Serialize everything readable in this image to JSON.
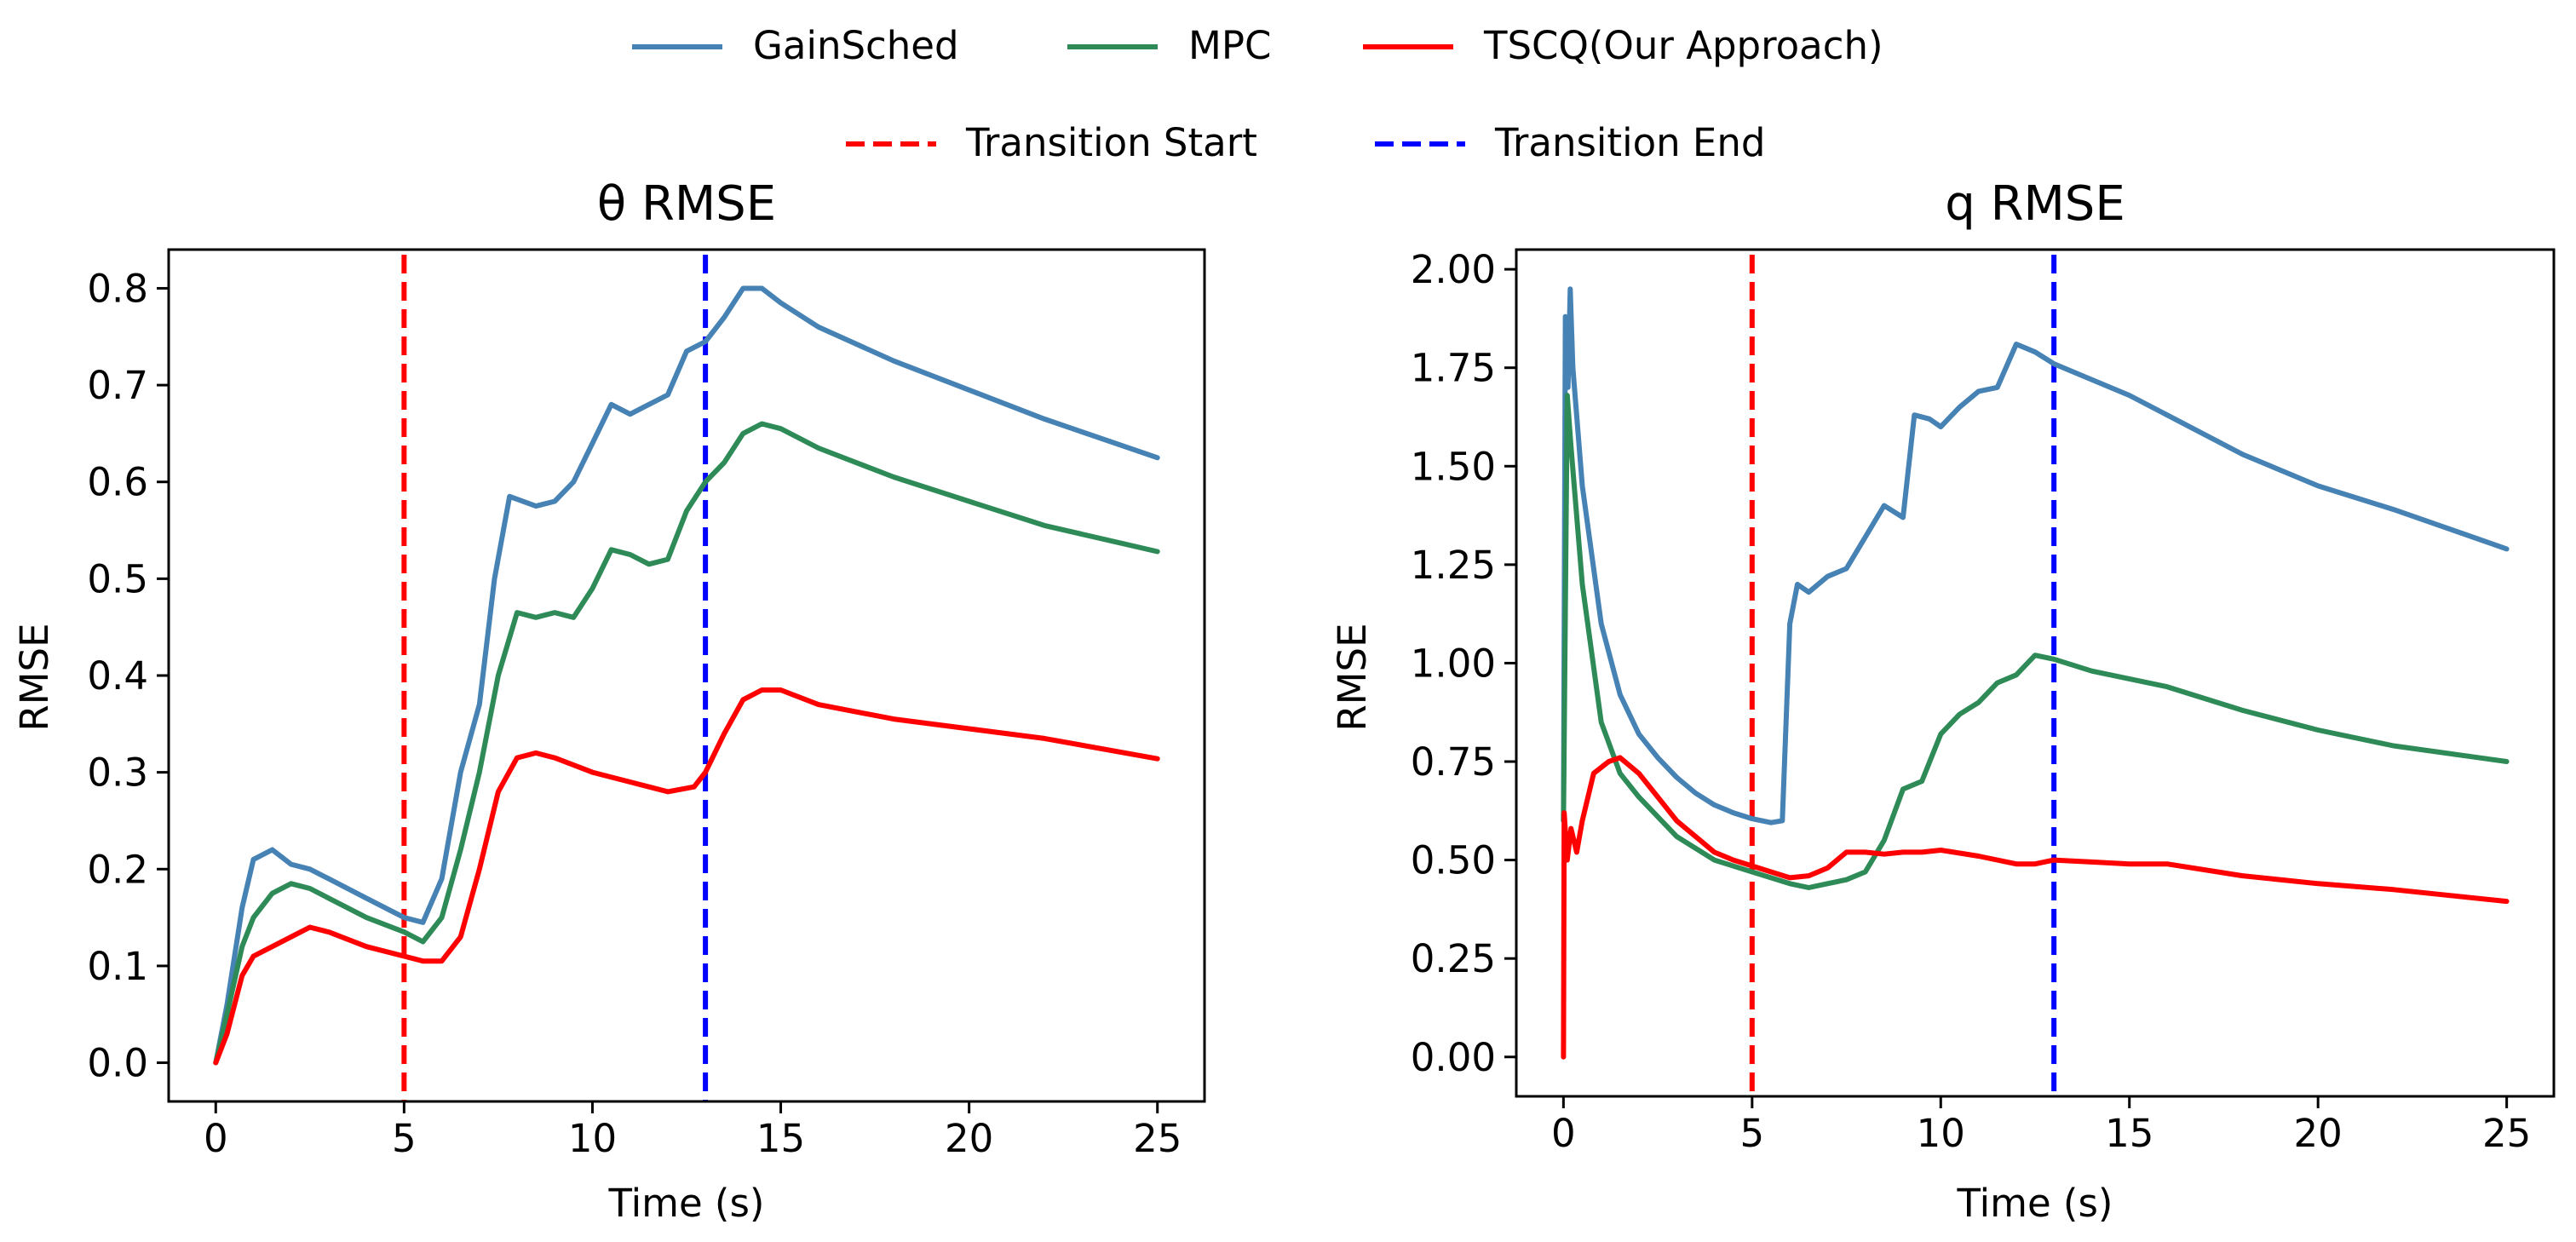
{
  "legend": {
    "row1": [
      {
        "label": "GainSched",
        "color": "#4682B4",
        "dash": "solid"
      },
      {
        "label": "MPC",
        "color": "#2E8B57",
        "dash": "solid"
      },
      {
        "label": "TSCQ(Our Approach)",
        "color": "#FF0000",
        "dash": "solid"
      }
    ],
    "row2": [
      {
        "label": "Transition Start",
        "color": "#FF0000",
        "dash": "dashed"
      },
      {
        "label": "Transition End",
        "color": "#0000FF",
        "dash": "dashed"
      }
    ]
  },
  "chart_data": [
    {
      "type": "line",
      "title": "θ RMSE",
      "xlabel": "Time (s)",
      "ylabel": "RMSE",
      "xlim": [
        -1.25,
        26.25
      ],
      "ylim": [
        -0.04,
        0.84
      ],
      "xticks": [
        0,
        5,
        10,
        15,
        20,
        25
      ],
      "yticks": [
        0.0,
        0.1,
        0.2,
        0.3,
        0.4,
        0.5,
        0.6,
        0.7,
        0.8
      ],
      "ytick_labels": [
        "0.0",
        "0.1",
        "0.2",
        "0.3",
        "0.4",
        "0.5",
        "0.6",
        "0.7",
        "0.8"
      ],
      "grid": false,
      "vlines": [
        {
          "x": 5,
          "label": "Transition Start",
          "color": "#FF0000"
        },
        {
          "x": 13,
          "label": "Transition End",
          "color": "#0000FF"
        }
      ],
      "series": [
        {
          "name": "GainSched",
          "color": "#4682B4",
          "points": [
            [
              0,
              0
            ],
            [
              0.3,
              0.06
            ],
            [
              0.7,
              0.16
            ],
            [
              1,
              0.21
            ],
            [
              1.5,
              0.22
            ],
            [
              2,
              0.205
            ],
            [
              2.5,
              0.2
            ],
            [
              3,
              0.19
            ],
            [
              4,
              0.17
            ],
            [
              5,
              0.15
            ],
            [
              5.5,
              0.145
            ],
            [
              6,
              0.19
            ],
            [
              6.5,
              0.3
            ],
            [
              7,
              0.37
            ],
            [
              7.4,
              0.5
            ],
            [
              7.8,
              0.585
            ],
            [
              8.5,
              0.575
            ],
            [
              9,
              0.58
            ],
            [
              9.5,
              0.6
            ],
            [
              10,
              0.64
            ],
            [
              10.5,
              0.68
            ],
            [
              11,
              0.67
            ],
            [
              11.5,
              0.68
            ],
            [
              12,
              0.69
            ],
            [
              12.5,
              0.735
            ],
            [
              13,
              0.745
            ],
            [
              13.5,
              0.77
            ],
            [
              14,
              0.8
            ],
            [
              14.5,
              0.8
            ],
            [
              15,
              0.785
            ],
            [
              16,
              0.76
            ],
            [
              18,
              0.725
            ],
            [
              20,
              0.695
            ],
            [
              22,
              0.665
            ],
            [
              25,
              0.625
            ]
          ]
        },
        {
          "name": "MPC",
          "color": "#2E8B57",
          "points": [
            [
              0,
              0
            ],
            [
              0.3,
              0.05
            ],
            [
              0.7,
              0.12
            ],
            [
              1,
              0.15
            ],
            [
              1.5,
              0.175
            ],
            [
              2,
              0.185
            ],
            [
              2.5,
              0.18
            ],
            [
              3,
              0.17
            ],
            [
              4,
              0.15
            ],
            [
              5,
              0.135
            ],
            [
              5.5,
              0.125
            ],
            [
              6,
              0.15
            ],
            [
              6.5,
              0.22
            ],
            [
              7,
              0.3
            ],
            [
              7.5,
              0.4
            ],
            [
              8,
              0.465
            ],
            [
              8.5,
              0.46
            ],
            [
              9,
              0.465
            ],
            [
              9.5,
              0.46
            ],
            [
              10,
              0.49
            ],
            [
              10.5,
              0.53
            ],
            [
              11,
              0.525
            ],
            [
              11.5,
              0.515
            ],
            [
              12,
              0.52
            ],
            [
              12.5,
              0.57
            ],
            [
              13,
              0.6
            ],
            [
              13.5,
              0.62
            ],
            [
              14,
              0.65
            ],
            [
              14.5,
              0.66
            ],
            [
              15,
              0.655
            ],
            [
              16,
              0.635
            ],
            [
              18,
              0.605
            ],
            [
              20,
              0.58
            ],
            [
              22,
              0.555
            ],
            [
              25,
              0.528
            ]
          ]
        },
        {
          "name": "TSCQ(Our Approach)",
          "color": "#FF0000",
          "points": [
            [
              0,
              0
            ],
            [
              0.3,
              0.03
            ],
            [
              0.7,
              0.09
            ],
            [
              1,
              0.11
            ],
            [
              1.5,
              0.12
            ],
            [
              2,
              0.13
            ],
            [
              2.5,
              0.14
            ],
            [
              3,
              0.135
            ],
            [
              4,
              0.12
            ],
            [
              5,
              0.11
            ],
            [
              5.5,
              0.105
            ],
            [
              6,
              0.105
            ],
            [
              6.5,
              0.13
            ],
            [
              7,
              0.2
            ],
            [
              7.5,
              0.28
            ],
            [
              8,
              0.315
            ],
            [
              8.5,
              0.32
            ],
            [
              9,
              0.315
            ],
            [
              10,
              0.3
            ],
            [
              11,
              0.29
            ],
            [
              12,
              0.28
            ],
            [
              12.7,
              0.285
            ],
            [
              13,
              0.3
            ],
            [
              13.5,
              0.34
            ],
            [
              14,
              0.375
            ],
            [
              14.5,
              0.385
            ],
            [
              15,
              0.385
            ],
            [
              16,
              0.37
            ],
            [
              18,
              0.355
            ],
            [
              20,
              0.345
            ],
            [
              22,
              0.335
            ],
            [
              25,
              0.314
            ]
          ]
        }
      ]
    },
    {
      "type": "line",
      "title": "q RMSE",
      "xlabel": "Time (s)",
      "ylabel": "RMSE",
      "xlim": [
        -1.25,
        26.25
      ],
      "ylim": [
        -0.1,
        2.05
      ],
      "xticks": [
        0,
        5,
        10,
        15,
        20,
        25
      ],
      "yticks": [
        0.0,
        0.25,
        0.5,
        0.75,
        1.0,
        1.25,
        1.5,
        1.75,
        2.0
      ],
      "ytick_labels": [
        "0.00",
        "0.25",
        "0.50",
        "0.75",
        "1.00",
        "1.25",
        "1.50",
        "1.75",
        "2.00"
      ],
      "grid": false,
      "vlines": [
        {
          "x": 5,
          "label": "Transition Start",
          "color": "#FF0000"
        },
        {
          "x": 13,
          "label": "Transition End",
          "color": "#0000FF"
        }
      ],
      "series": [
        {
          "name": "GainSched",
          "color": "#4682B4",
          "points": [
            [
              0,
              0.6
            ],
            [
              0.05,
              1.88
            ],
            [
              0.12,
              1.7
            ],
            [
              0.18,
              1.95
            ],
            [
              0.25,
              1.75
            ],
            [
              0.5,
              1.45
            ],
            [
              1,
              1.1
            ],
            [
              1.5,
              0.92
            ],
            [
              2,
              0.82
            ],
            [
              2.5,
              0.76
            ],
            [
              3,
              0.71
            ],
            [
              3.5,
              0.67
            ],
            [
              4,
              0.64
            ],
            [
              4.5,
              0.62
            ],
            [
              5,
              0.605
            ],
            [
              5.5,
              0.595
            ],
            [
              5.8,
              0.6
            ],
            [
              6,
              1.1
            ],
            [
              6.2,
              1.2
            ],
            [
              6.5,
              1.18
            ],
            [
              7,
              1.22
            ],
            [
              7.5,
              1.24
            ],
            [
              8,
              1.32
            ],
            [
              8.5,
              1.4
            ],
            [
              9,
              1.37
            ],
            [
              9.3,
              1.63
            ],
            [
              9.7,
              1.62
            ],
            [
              10,
              1.6
            ],
            [
              10.5,
              1.65
            ],
            [
              11,
              1.69
            ],
            [
              11.5,
              1.7
            ],
            [
              12,
              1.81
            ],
            [
              12.5,
              1.79
            ],
            [
              13,
              1.76
            ],
            [
              14,
              1.72
            ],
            [
              15,
              1.68
            ],
            [
              16,
              1.63
            ],
            [
              18,
              1.53
            ],
            [
              20,
              1.45
            ],
            [
              22,
              1.39
            ],
            [
              25,
              1.29
            ]
          ]
        },
        {
          "name": "MPC",
          "color": "#2E8B57",
          "points": [
            [
              0,
              0.6
            ],
            [
              0.1,
              1.68
            ],
            [
              0.2,
              1.55
            ],
            [
              0.5,
              1.2
            ],
            [
              1,
              0.85
            ],
            [
              1.5,
              0.72
            ],
            [
              2,
              0.66
            ],
            [
              3,
              0.56
            ],
            [
              4,
              0.5
            ],
            [
              5,
              0.47
            ],
            [
              6,
              0.44
            ],
            [
              6.5,
              0.43
            ],
            [
              7,
              0.44
            ],
            [
              7.5,
              0.45
            ],
            [
              8,
              0.47
            ],
            [
              8.5,
              0.55
            ],
            [
              9,
              0.68
            ],
            [
              9.5,
              0.7
            ],
            [
              10,
              0.82
            ],
            [
              10.5,
              0.87
            ],
            [
              11,
              0.9
            ],
            [
              11.5,
              0.95
            ],
            [
              12,
              0.97
            ],
            [
              12.5,
              1.02
            ],
            [
              13,
              1.01
            ],
            [
              14,
              0.98
            ],
            [
              15,
              0.96
            ],
            [
              16,
              0.94
            ],
            [
              18,
              0.88
            ],
            [
              20,
              0.83
            ],
            [
              22,
              0.79
            ],
            [
              25,
              0.75
            ]
          ]
        },
        {
          "name": "TSCQ(Our Approach)",
          "color": "#FF0000",
          "points": [
            [
              0,
              0
            ],
            [
              0.02,
              0.62
            ],
            [
              0.1,
              0.5
            ],
            [
              0.2,
              0.58
            ],
            [
              0.35,
              0.52
            ],
            [
              0.5,
              0.6
            ],
            [
              0.8,
              0.72
            ],
            [
              1.2,
              0.75
            ],
            [
              1.5,
              0.76
            ],
            [
              2,
              0.72
            ],
            [
              2.5,
              0.66
            ],
            [
              3,
              0.6
            ],
            [
              3.5,
              0.56
            ],
            [
              4,
              0.52
            ],
            [
              4.5,
              0.5
            ],
            [
              5,
              0.485
            ],
            [
              5.5,
              0.47
            ],
            [
              6,
              0.455
            ],
            [
              6.5,
              0.46
            ],
            [
              7,
              0.48
            ],
            [
              7.5,
              0.52
            ],
            [
              8,
              0.52
            ],
            [
              8.5,
              0.515
            ],
            [
              9,
              0.52
            ],
            [
              9.5,
              0.52
            ],
            [
              10,
              0.525
            ],
            [
              11,
              0.51
            ],
            [
              12,
              0.49
            ],
            [
              12.5,
              0.49
            ],
            [
              13,
              0.5
            ],
            [
              14,
              0.495
            ],
            [
              15,
              0.49
            ],
            [
              16,
              0.49
            ],
            [
              18,
              0.46
            ],
            [
              20,
              0.44
            ],
            [
              22,
              0.425
            ],
            [
              25,
              0.395
            ]
          ]
        }
      ]
    }
  ]
}
